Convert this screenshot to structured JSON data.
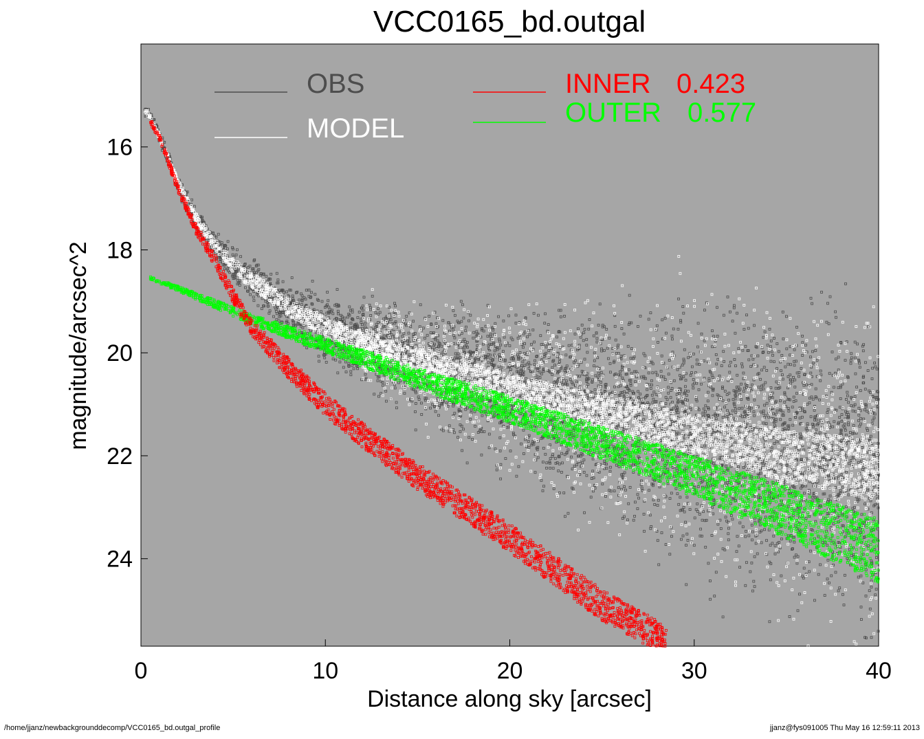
{
  "title": "VCC0165_bd.outgal",
  "footer": {
    "left": "/home/jjanz/newbackgrounddecomp/VCC0165_bd.outgal_profile",
    "right": "jjanz@fys091005  Thu May 16 12:59:11 2013"
  },
  "colors": {
    "background": "#a6a6a6",
    "obs": "#4d4d4d",
    "model": "#ffffff",
    "inner": "#ff0000",
    "outer": "#00ff00"
  },
  "chart_data": {
    "type": "scatter",
    "title": "VCC0165_bd.outgal",
    "xlabel": "Distance along sky [arcsec]",
    "ylabel": "magnitude/arcsec^2",
    "xlim": [
      0,
      40
    ],
    "ylim": [
      25.7,
      14.0
    ],
    "y_inverted": true,
    "xticks": [
      0,
      10,
      20,
      30,
      40
    ],
    "yticks": [
      16,
      18,
      20,
      22,
      24
    ],
    "legend_placement": "top",
    "legend": [
      {
        "label": "OBS",
        "value": "",
        "color": "#4d4d4d"
      },
      {
        "label": "MODEL",
        "value": "",
        "color": "#ffffff"
      },
      {
        "label": "INNER",
        "value": "0.423",
        "color": "#ff0000"
      },
      {
        "label": "OUTER",
        "value": "0.577",
        "color": "#00ff00"
      }
    ],
    "series": [
      {
        "name": "OBS",
        "color": "#4d4d4d",
        "x": [
          0.2,
          0.5,
          1,
          2,
          3,
          4,
          5,
          6,
          8,
          10,
          12,
          15,
          20,
          25,
          30,
          35,
          40
        ],
        "y": [
          15.3,
          15.4,
          15.8,
          16.7,
          17.4,
          17.9,
          18.3,
          18.6,
          19.1,
          19.5,
          19.8,
          20.2,
          20.7,
          21.2,
          21.6,
          22.0,
          22.3
        ],
        "y_scatter": [
          0.05,
          0.05,
          0.05,
          0.08,
          0.1,
          0.12,
          0.15,
          0.18,
          0.22,
          0.3,
          0.35,
          0.45,
          0.65,
          0.85,
          1.05,
          1.25,
          1.45
        ]
      },
      {
        "name": "MODEL",
        "color": "#ffffff",
        "x": [
          0.2,
          0.5,
          1,
          2,
          3,
          4,
          5,
          6,
          8,
          10,
          12,
          15,
          20,
          25,
          30,
          35,
          40
        ],
        "y": [
          15.3,
          15.4,
          15.8,
          16.7,
          17.4,
          17.9,
          18.3,
          18.6,
          19.1,
          19.5,
          19.8,
          20.2,
          20.7,
          21.2,
          21.6,
          22.0,
          22.3
        ],
        "band": [
          0.05,
          0.05,
          0.06,
          0.08,
          0.1,
          0.12,
          0.14,
          0.16,
          0.18,
          0.2,
          0.22,
          0.25,
          0.3,
          0.35,
          0.4,
          0.5,
          0.6
        ]
      },
      {
        "name": "INNER",
        "color": "#ff0000",
        "x": [
          0.5,
          1,
          2,
          3,
          4,
          5,
          6,
          7,
          8,
          10,
          12,
          15,
          20,
          25,
          28.5
        ],
        "y": [
          15.5,
          15.8,
          16.8,
          17.6,
          18.2,
          18.9,
          19.5,
          19.9,
          20.3,
          21.0,
          21.6,
          22.4,
          23.6,
          24.9,
          25.6
        ],
        "band": [
          0.05,
          0.06,
          0.08,
          0.1,
          0.12,
          0.14,
          0.16,
          0.18,
          0.2,
          0.22,
          0.24,
          0.26,
          0.28,
          0.3,
          0.3
        ]
      },
      {
        "name": "OUTER",
        "color": "#00ff00",
        "x": [
          0.5,
          2,
          4,
          6,
          8,
          10,
          12,
          15,
          20,
          25,
          30,
          35,
          40
        ],
        "y": [
          18.55,
          18.75,
          19.05,
          19.35,
          19.6,
          19.85,
          20.1,
          20.5,
          21.1,
          21.75,
          22.4,
          23.1,
          23.85
        ],
        "band": [
          0.03,
          0.05,
          0.08,
          0.1,
          0.12,
          0.14,
          0.17,
          0.2,
          0.26,
          0.32,
          0.4,
          0.5,
          0.62
        ]
      }
    ]
  }
}
